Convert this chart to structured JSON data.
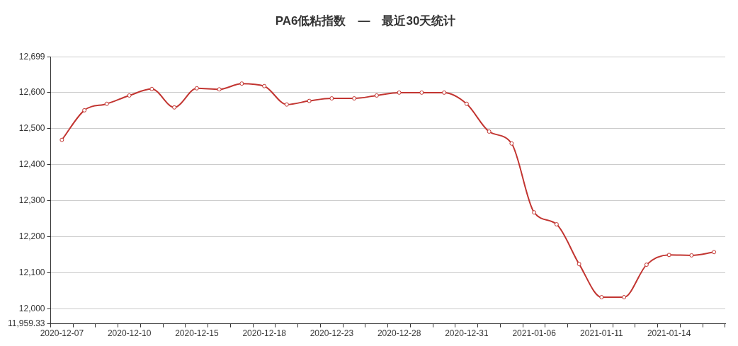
{
  "chart_data": {
    "type": "line",
    "title": "PA6低粘指数　—　最近30天统计",
    "categories": [
      "2020-12-07",
      null,
      null,
      "2020-12-10",
      null,
      null,
      "2020-12-15",
      null,
      null,
      "2020-12-18",
      null,
      null,
      "2020-12-23",
      null,
      null,
      "2020-12-28",
      null,
      null,
      "2020-12-31",
      null,
      null,
      "2021-01-06",
      null,
      null,
      "2021-01-11",
      null,
      null,
      "2021-01-14",
      null,
      null
    ],
    "series": [
      {
        "color": "#c23531",
        "values": [
          12469,
          12551,
          12569,
          12592,
          12610,
          12559,
          12612,
          12609,
          12625,
          12618,
          12567,
          12577,
          12584,
          12584,
          12592,
          12600,
          12600,
          12600,
          12569,
          12492,
          12459,
          12268,
          12235,
          12125,
          12033,
          12033,
          12123,
          12150,
          12149,
          12158
        ]
      }
    ],
    "ylim": [
      11959.33,
      12699
    ],
    "yticks": [
      {
        "value": 11959.33,
        "label": "11,959.33"
      },
      {
        "value": 12000,
        "label": "12,000"
      },
      {
        "value": 12100,
        "label": "12,100"
      },
      {
        "value": 12200,
        "label": "12,200"
      },
      {
        "value": 12300,
        "label": "12,300"
      },
      {
        "value": 12400,
        "label": "12,400"
      },
      {
        "value": 12500,
        "label": "12,500"
      },
      {
        "value": 12600,
        "label": "12,600"
      },
      {
        "value": 12699,
        "label": "12,699"
      }
    ],
    "grid": "y",
    "legend": false,
    "marker": "circle",
    "line_style": "solid"
  }
}
